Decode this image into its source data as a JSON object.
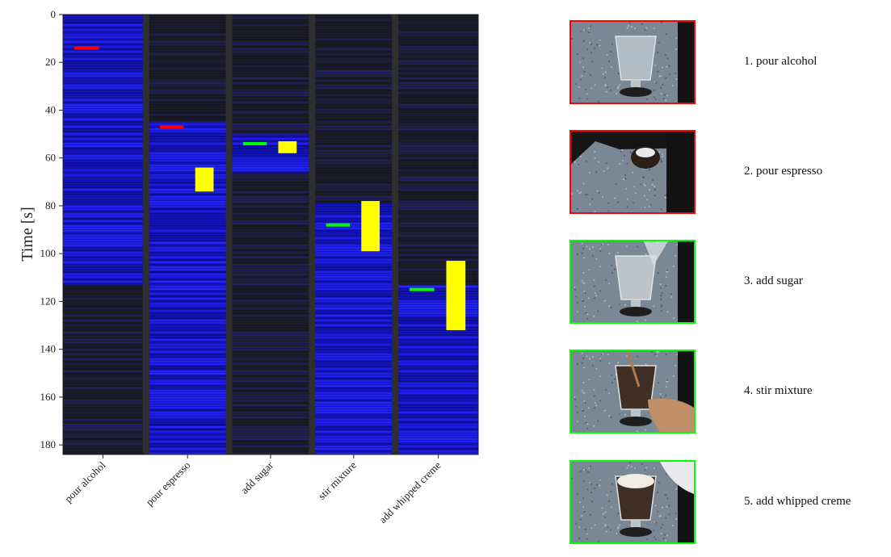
{
  "chart_data": {
    "type": "heatmap",
    "title": "",
    "ylabel": "Time  [s]",
    "xlabel": "",
    "ylim": [
      0,
      184
    ],
    "y_ticks": [
      0,
      20,
      40,
      60,
      80,
      100,
      120,
      140,
      160,
      180
    ],
    "y_inverted": true,
    "categories": [
      "pour alcohol",
      "pour espresso",
      "add sugar",
      "stir mixture",
      "add whipped creme"
    ],
    "columns": [
      {
        "name": "pour alcohol",
        "active_interval": [
          0,
          113
        ],
        "marker_time": 14,
        "marker_color": "#ff0000",
        "box_interval": null
      },
      {
        "name": "pour espresso",
        "active_interval": [
          45,
          184
        ],
        "marker_time": 47,
        "marker_color": "#ff0000",
        "box_interval": [
          64,
          74
        ]
      },
      {
        "name": "add sugar",
        "active_interval": [
          50,
          66
        ],
        "marker_time": 54,
        "marker_color": "#00ff00",
        "box_interval": [
          53,
          58
        ]
      },
      {
        "name": "stir mixture",
        "active_interval": [
          79,
          184
        ],
        "marker_time": 88,
        "marker_color": "#00ff00",
        "box_interval": [
          78,
          99
        ]
      },
      {
        "name": "add whipped creme",
        "active_interval": [
          113,
          184
        ],
        "marker_time": 115,
        "marker_color": "#00ff00",
        "box_interval": [
          103,
          132
        ]
      }
    ],
    "colors": {
      "active": "#1a1aff",
      "inactive": "#1c1c2a",
      "box": "#ffff00",
      "separator": "#2f2f2f"
    }
  },
  "frames": [
    {
      "label": "1. pour alcohol",
      "border_color": "#ff0000",
      "scene": "glass-clear"
    },
    {
      "label": "2. pour espresso",
      "border_color": "#ff0000",
      "scene": "cup-dark"
    },
    {
      "label": "3. add sugar",
      "border_color": "#00ff00",
      "scene": "glass-pour"
    },
    {
      "label": "4. stir mixture",
      "border_color": "#00ff00",
      "scene": "glass-stir"
    },
    {
      "label": "5. add whipped creme",
      "border_color": "#00ff00",
      "scene": "glass-creme"
    }
  ]
}
